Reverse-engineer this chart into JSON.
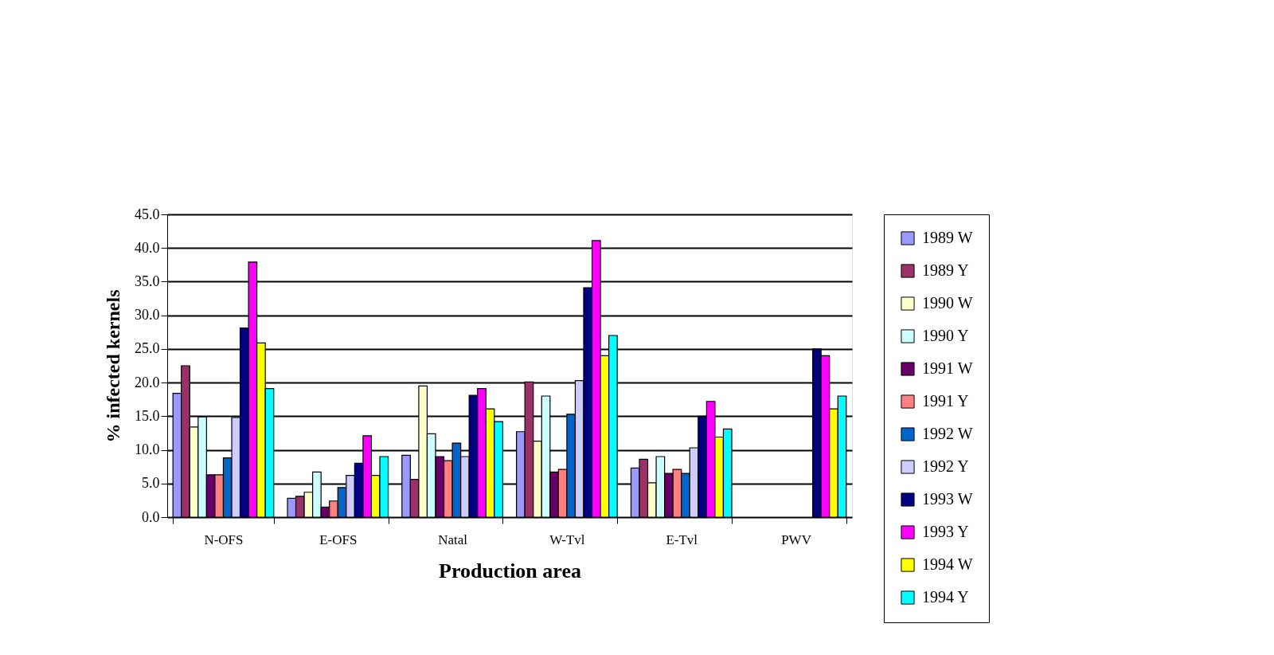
{
  "chart_data": {
    "type": "bar",
    "xlabel": "Production area",
    "ylabel": "% infected kernels",
    "categories": [
      "N-OFS",
      "E-OFS",
      "Natal",
      "W-Tvl",
      "E-Tvl",
      "PWV"
    ],
    "series": [
      {
        "name": "1989 W",
        "color": "#9999ff",
        "values": [
          18.4,
          2.8,
          9.2,
          12.7,
          7.3,
          null
        ]
      },
      {
        "name": "1989 Y",
        "color": "#993366",
        "values": [
          22.5,
          3.1,
          5.6,
          20.1,
          8.6,
          null
        ]
      },
      {
        "name": "1990 W",
        "color": "#ffffcc",
        "values": [
          13.4,
          3.7,
          19.5,
          11.3,
          5.1,
          null
        ]
      },
      {
        "name": "1990 Y",
        "color": "#ccffff",
        "values": [
          14.9,
          6.7,
          12.4,
          18.0,
          9.0,
          null
        ]
      },
      {
        "name": "1991 W",
        "color": "#660066",
        "values": [
          6.3,
          1.5,
          9.0,
          6.7,
          6.5,
          null
        ]
      },
      {
        "name": "1991 Y",
        "color": "#ff8080",
        "values": [
          6.3,
          2.4,
          8.4,
          7.1,
          7.1,
          null
        ]
      },
      {
        "name": "1992 W",
        "color": "#0066cc",
        "values": [
          8.8,
          4.4,
          11.0,
          15.3,
          6.5,
          null
        ]
      },
      {
        "name": "1992 Y",
        "color": "#ccccff",
        "values": [
          14.8,
          6.2,
          9.0,
          20.3,
          10.3,
          null
        ]
      },
      {
        "name": "1993 W",
        "color": "#000080",
        "values": [
          28.1,
          8.0,
          18.1,
          34.1,
          15.0,
          25.0
        ]
      },
      {
        "name": "1993 Y",
        "color": "#ff00ff",
        "values": [
          37.9,
          12.1,
          19.1,
          41.1,
          17.2,
          24.0
        ]
      },
      {
        "name": "1994 W",
        "color": "#ffff00",
        "values": [
          25.9,
          6.2,
          16.1,
          24.0,
          11.9,
          16.1
        ]
      },
      {
        "name": "1994 Y",
        "color": "#00ffff",
        "values": [
          19.1,
          9.0,
          14.2,
          27.0,
          13.1,
          18.0
        ]
      }
    ],
    "ylim": [
      0,
      45
    ],
    "yticks": [
      {
        "value": 0,
        "label": "0.0"
      },
      {
        "value": 5,
        "label": "5.0"
      },
      {
        "value": 10,
        "label": "10.0"
      },
      {
        "value": 15,
        "label": "15.0"
      },
      {
        "value": 20,
        "label": "20.0"
      },
      {
        "value": 25,
        "label": "25.0"
      },
      {
        "value": 30,
        "label": "30.0"
      },
      {
        "value": 35,
        "label": "35.0"
      },
      {
        "value": 40,
        "label": "40.0"
      },
      {
        "value": 45,
        "label": "45.0"
      }
    ],
    "grid": "y",
    "legend": "right"
  }
}
